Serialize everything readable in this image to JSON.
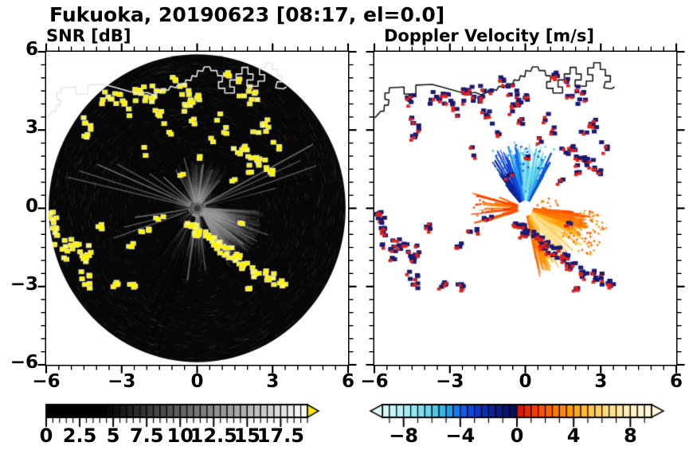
{
  "figure": {
    "title": "Fukuoka, 20190623 [08:17, el=0.0]"
  },
  "panels": {
    "snr": {
      "title": "SNR [dB]"
    },
    "doppler": {
      "title": "Doppler Velocity [m/s]"
    }
  },
  "axes": {
    "x_range": [
      -6,
      6
    ],
    "y_range": [
      -6,
      6
    ],
    "major_ticks": [
      -6,
      -3,
      0,
      3,
      6
    ],
    "minor_step": 0.5,
    "x_tick_labels": [
      "−6",
      "−3",
      "0",
      "3",
      "6"
    ],
    "y_tick_labels": [
      "6",
      "3",
      "0",
      "−3",
      "−6"
    ]
  },
  "colorbars": {
    "snr": {
      "range": [
        0,
        19.5
      ],
      "cell": 0.5,
      "tick_values": [
        0,
        2.5,
        5,
        7.5,
        10,
        12.5,
        15,
        17.5
      ],
      "tick_labels": [
        "0",
        "2.5",
        "5",
        "7.5",
        "10",
        "12.5",
        "15",
        "17.5"
      ],
      "minor_step": 0.5,
      "black_until": 4.5,
      "overflow_arrow_color": "#FFE80A"
    },
    "doppler": {
      "range": [
        -9.5,
        9.5
      ],
      "cell": 0.5,
      "tick_values": [
        -8,
        -4,
        0,
        4,
        8
      ],
      "tick_labels": [
        "−8",
        "−4",
        "0",
        "4",
        "8"
      ],
      "minor_step": 1,
      "stops": [
        [
          -9.5,
          "#DFF8F8"
        ],
        [
          -8.0,
          "#AEEFF2"
        ],
        [
          -6.5,
          "#77DCEE"
        ],
        [
          -5.5,
          "#3FC2E8"
        ],
        [
          -4.7,
          "#1E9BE8"
        ],
        [
          -4.0,
          "#1464EE"
        ],
        [
          -3.0,
          "#0F3FD4"
        ],
        [
          -2.0,
          "#0C28A4"
        ],
        [
          -1.0,
          "#091878"
        ],
        [
          -0.25,
          "#070F5A"
        ],
        [
          0.25,
          "#DC1400"
        ],
        [
          1.0,
          "#F53200"
        ],
        [
          2.0,
          "#FF5A00"
        ],
        [
          3.0,
          "#FF8200"
        ],
        [
          4.0,
          "#FFA300"
        ],
        [
          5.0,
          "#FFC03C"
        ],
        [
          6.0,
          "#FFD46E"
        ],
        [
          7.0,
          "#FFE496"
        ],
        [
          8.0,
          "#FFF0BE"
        ],
        [
          9.5,
          "#FFF8DC"
        ]
      ]
    }
  },
  "chart_data": {
    "type": "radar_ppi",
    "site": "Fukuoka",
    "date": "20190623",
    "time": "08:17",
    "elevation_deg": 0.0,
    "range_km": 6,
    "disk_radius": 5.9,
    "coastline": [
      [
        -6.25,
        3.35
      ],
      [
        -5.95,
        3.5
      ],
      [
        -5.75,
        3.72
      ],
      [
        -5.62,
        3.72
      ],
      [
        -5.6,
        3.95
      ],
      [
        -5.45,
        3.95
      ],
      [
        -5.42,
        4.15
      ],
      [
        -5.58,
        4.18
      ],
      [
        -5.58,
        4.42
      ],
      [
        -5.42,
        4.42
      ],
      [
        -5.4,
        4.62
      ],
      [
        -4.82,
        4.65
      ],
      [
        -4.82,
        4.38
      ],
      [
        -4.35,
        4.38
      ],
      [
        -4.35,
        4.72
      ],
      [
        -3.7,
        4.75
      ],
      [
        -3.2,
        4.62
      ],
      [
        -2.7,
        4.48
      ],
      [
        -2.3,
        4.38
      ],
      [
        -2.0,
        4.44
      ],
      [
        -1.75,
        4.35
      ],
      [
        -1.52,
        4.45
      ],
      [
        -1.35,
        4.58
      ],
      [
        -1.15,
        4.52
      ],
      [
        -1.05,
        4.68
      ],
      [
        -0.85,
        4.62
      ],
      [
        -0.72,
        4.78
      ],
      [
        -0.5,
        4.75
      ],
      [
        -0.45,
        4.92
      ],
      [
        -0.25,
        4.9
      ],
      [
        -0.2,
        5.08
      ],
      [
        -0.02,
        5.05
      ],
      [
        0.02,
        5.28
      ],
      [
        0.22,
        5.25
      ],
      [
        0.28,
        5.42
      ],
      [
        0.5,
        5.42
      ],
      [
        0.55,
        5.28
      ],
      [
        0.78,
        5.28
      ],
      [
        0.82,
        5.08
      ],
      [
        1.0,
        5.08
      ],
      [
        1.0,
        4.85
      ],
      [
        0.85,
        4.85
      ],
      [
        0.85,
        4.6
      ],
      [
        1.1,
        4.6
      ],
      [
        1.1,
        4.42
      ],
      [
        1.48,
        4.42
      ],
      [
        1.48,
        4.65
      ],
      [
        1.3,
        4.65
      ],
      [
        1.3,
        4.92
      ],
      [
        1.55,
        4.92
      ],
      [
        1.55,
        5.15
      ],
      [
        1.78,
        5.15
      ],
      [
        1.78,
        5.4
      ],
      [
        2.02,
        5.4
      ],
      [
        2.02,
        5.15
      ],
      [
        2.22,
        5.15
      ],
      [
        2.22,
        4.92
      ],
      [
        1.98,
        4.92
      ],
      [
        1.98,
        4.68
      ],
      [
        2.42,
        4.68
      ],
      [
        2.42,
        4.88
      ],
      [
        2.68,
        4.88
      ],
      [
        2.68,
        5.12
      ],
      [
        2.48,
        5.12
      ],
      [
        2.48,
        5.38
      ],
      [
        2.72,
        5.38
      ],
      [
        2.72,
        5.58
      ],
      [
        2.98,
        5.58
      ],
      [
        2.98,
        5.32
      ],
      [
        3.18,
        5.32
      ],
      [
        3.18,
        5.08
      ],
      [
        3.38,
        5.08
      ],
      [
        3.38,
        4.85
      ],
      [
        3.18,
        4.85
      ],
      [
        3.12,
        4.62
      ],
      [
        3.42,
        4.58
      ],
      [
        3.55,
        4.65
      ]
    ],
    "clutter_clusters": [
      [
        -4.55,
        4.25,
        5,
        0.22,
        0.18
      ],
      [
        -4.35,
        3.15,
        8,
        0.22,
        0.4
      ],
      [
        -3.3,
        4.3,
        10,
        0.38,
        0.28
      ],
      [
        -2.7,
        3.95,
        6,
        0.28,
        0.3
      ],
      [
        -2.28,
        4.55,
        4,
        0.18,
        0.14
      ],
      [
        -1.8,
        4.28,
        12,
        0.38,
        0.3
      ],
      [
        -1.5,
        3.5,
        5,
        0.18,
        0.3
      ],
      [
        -0.85,
        4.85,
        4,
        0.16,
        0.16
      ],
      [
        -0.45,
        4.55,
        4,
        0.18,
        0.26
      ],
      [
        -0.3,
        3.95,
        9,
        0.32,
        0.28
      ],
      [
        0.1,
        4.35,
        3,
        0.14,
        0.18
      ],
      [
        -0.1,
        3.25,
        3,
        0.14,
        0.18
      ],
      [
        0.8,
        3.5,
        2,
        0.1,
        0.14
      ],
      [
        1.3,
        5.1,
        4,
        0.18,
        0.18
      ],
      [
        1.62,
        4.85,
        2,
        0.1,
        0.1
      ],
      [
        2.1,
        4.35,
        9,
        0.32,
        0.26
      ],
      [
        2.62,
        3.2,
        8,
        0.28,
        0.3
      ],
      [
        1.15,
        2.9,
        3,
        0.14,
        0.18
      ],
      [
        3.1,
        2.35,
        3,
        0.16,
        0.16
      ],
      [
        2.5,
        1.85,
        6,
        0.3,
        0.22
      ],
      [
        2.95,
        1.42,
        5,
        0.26,
        0.18
      ],
      [
        1.65,
        2.2,
        9,
        0.32,
        0.28
      ],
      [
        2.2,
        1.6,
        6,
        0.26,
        0.22
      ],
      [
        -5.85,
        -0.3,
        7,
        0.18,
        0.32
      ],
      [
        -5.62,
        -0.95,
        9,
        0.22,
        0.38
      ],
      [
        -5.35,
        -1.55,
        7,
        0.22,
        0.32
      ],
      [
        -4.95,
        -1.4,
        6,
        0.25,
        0.2
      ],
      [
        -4.4,
        -1.7,
        9,
        0.32,
        0.26
      ],
      [
        -3.9,
        -0.72,
        4,
        0.22,
        0.13
      ],
      [
        -4.45,
        -2.6,
        4,
        0.2,
        0.14
      ],
      [
        -4.3,
        -2.95,
        3,
        0.16,
        0.12
      ],
      [
        -3.25,
        -2.9,
        5,
        0.22,
        0.16
      ],
      [
        -2.05,
        -0.82,
        4,
        0.26,
        0.11
      ],
      [
        -2.6,
        -1.35,
        3,
        0.18,
        0.1
      ],
      [
        -1.6,
        -0.35,
        3,
        0.24,
        0.1
      ],
      [
        -0.25,
        -0.62,
        7,
        0.2,
        0.14
      ],
      [
        0.1,
        -0.9,
        8,
        0.2,
        0.16
      ],
      [
        0.45,
        -1.12,
        8,
        0.2,
        0.16
      ],
      [
        0.8,
        -1.38,
        8,
        0.2,
        0.16
      ],
      [
        1.15,
        -1.62,
        7,
        0.2,
        0.16
      ],
      [
        1.5,
        -1.9,
        8,
        0.22,
        0.18
      ],
      [
        1.85,
        -2.15,
        6,
        0.18,
        0.16
      ],
      [
        2.3,
        -2.4,
        7,
        0.22,
        0.18
      ],
      [
        2.8,
        -2.58,
        6,
        0.22,
        0.16
      ],
      [
        3.3,
        -2.82,
        7,
        0.26,
        0.18
      ],
      [
        2.1,
        -3.1,
        4,
        0.18,
        0.13
      ],
      [
        1.82,
        -0.62,
        2,
        0.1,
        0.1
      ],
      [
        -2.7,
        -2.95,
        4,
        0.22,
        0.13
      ],
      [
        -2.1,
        2.2,
        2,
        0.07,
        0.15
      ],
      [
        0.05,
        1.9,
        2,
        0.07,
        0.15
      ],
      [
        -0.6,
        1.35,
        2,
        0.07,
        0.13
      ],
      [
        1.45,
        1.05,
        2,
        0.07,
        0.13
      ],
      [
        -1.1,
        2.9,
        2,
        0.09,
        0.13
      ],
      [
        0.6,
        2.6,
        2,
        0.07,
        0.13
      ]
    ],
    "snr": {
      "bright_streaks": [
        [
          62,
          5.2
        ],
        [
          66,
          4.5
        ],
        [
          71,
          5.0
        ],
        [
          76,
          3.2
        ],
        [
          110,
          3.0
        ],
        [
          118,
          2.7
        ],
        [
          127,
          2.3
        ],
        [
          140,
          2.0
        ],
        [
          172,
          2.4
        ],
        [
          188,
          2.8
        ],
        [
          251,
          3.5
        ],
        [
          256,
          3.0
        ],
        [
          262,
          2.5
        ],
        [
          283,
          5.3
        ],
        [
          287,
          4.9
        ],
        [
          293,
          4.3
        ],
        [
          298,
          3.6
        ],
        [
          305,
          2.3
        ],
        [
          312,
          1.8
        ],
        [
          330,
          1.7
        ],
        [
          345,
          2.0
        ],
        [
          8,
          1.7
        ],
        [
          22,
          1.6
        ],
        [
          40,
          1.4
        ]
      ],
      "dark_streaks": [
        [
          75,
          4.8
        ],
        [
          152,
          2.9
        ],
        [
          196,
          5.6
        ],
        [
          200,
          5.2
        ],
        [
          204,
          4.6
        ],
        [
          211,
          4.0
        ],
        [
          222,
          3.4
        ],
        [
          258,
          3.3
        ],
        [
          246,
          2.6
        ]
      ],
      "haze_fans": [
        {
          "az": [
            92,
            152
          ],
          "rmax": 2.7,
          "alpha": 0.1,
          "count": 420
        },
        {
          "az": [
            -28,
            40
          ],
          "rmax": 1.9,
          "alpha": 0.06,
          "count": 260
        },
        {
          "az": [
            168,
            218
          ],
          "rmax": 2.3,
          "alpha": 0.05,
          "count": 200
        }
      ]
    },
    "doppler": {
      "center_hole_radius": 0.3,
      "fans": [
        {
          "name": "approaching-north-fan",
          "neg": true,
          "az": [
            -42,
            30
          ],
          "count": 270,
          "rmin": 0.32,
          "rmax": 2.5,
          "rpow": 1.7,
          "center_az": 4,
          "center_sigma": 24
        },
        {
          "name": "receding-southeast-fan",
          "neg": false,
          "az": [
            94,
            168
          ],
          "count": 310,
          "rmin": 0.32,
          "rmax": 2.7,
          "rpow": 1.5,
          "center_az": 134,
          "center_sigma": 24
        },
        {
          "name": "receding-west-streaks",
          "neg": false,
          "west": true,
          "az": [
            250,
            292
          ],
          "count": 36,
          "rmin": 0.3,
          "rmax": 2.3,
          "rpow": 1.6,
          "center_az": 270,
          "center_sigma": 30
        }
      ],
      "scatter_dots": [
        {
          "az": [
            92,
            128
          ],
          "count": 85,
          "r": [
            1.8,
            3.3
          ],
          "v": [
            1.5,
            4.0
          ]
        },
        {
          "az": [
            -40,
            28
          ],
          "count": 55,
          "r": [
            1.3,
            2.6
          ],
          "v": [
            -7.0,
            -3.0
          ]
        },
        {
          "az": [
            255,
            285
          ],
          "count": 14,
          "r": [
            1.2,
            2.1
          ],
          "v": [
            1.0,
            2.5
          ]
        },
        {
          "az": [
            62,
            90
          ],
          "count": 12,
          "r": [
            0.5,
            1.3
          ],
          "v": [
            1.5,
            3.5
          ]
        }
      ]
    },
    "colors": {
      "clutter_overflow_yellow": "#FFF400",
      "clutter_halo": "#DCDCDC",
      "clutter_navy": "#1A1A73",
      "clutter_red": "#E51F14",
      "disk_black": "#070707",
      "coast_left": "#E8E8E8",
      "coast_right": "#161616"
    }
  }
}
